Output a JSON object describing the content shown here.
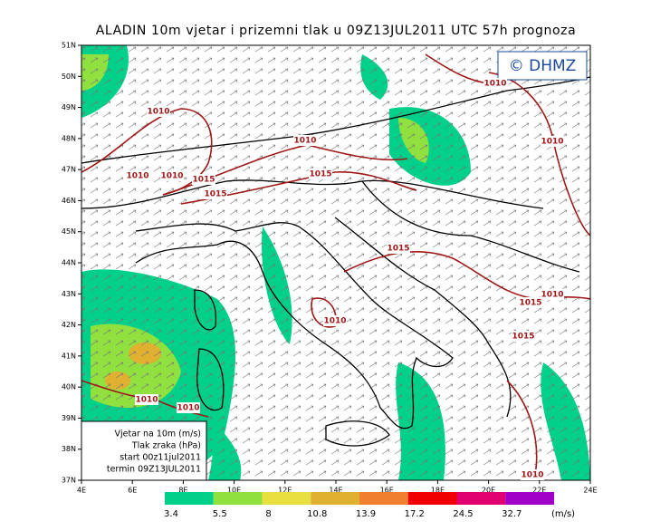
{
  "title": "ALADIN 10m vjetar i prizemni tlak u 09Z13JUL2011 UTC 57h prognoza",
  "copyright": "© DHMZ",
  "lat_labels": [
    "51N",
    "50N",
    "49N",
    "48N",
    "47N",
    "46N",
    "45N",
    "44N",
    "43N",
    "42N",
    "41N",
    "40N",
    "39N",
    "38N",
    "37N"
  ],
  "lon_labels": [
    "4E",
    "6E",
    "8E",
    "10E",
    "12E",
    "14E",
    "16E",
    "18E",
    "20E",
    "22E",
    "24E"
  ],
  "info_box": [
    "Vjetar na 10m (m/s)",
    "Tlak zraka (hPa)",
    "start 00z11jul2011",
    "termin 09Z13JUL2011"
  ],
  "isobar_labels": [
    "1010",
    "1010",
    "1010",
    "1010",
    "1015",
    "1015",
    "1015",
    "1010",
    "1010",
    "1015",
    "1010",
    "1015",
    "1010",
    "1015",
    "1010",
    "1010",
    "1010"
  ],
  "colorbar": {
    "colors": [
      "#00d08a",
      "#90e040",
      "#e8e040",
      "#e0b030",
      "#f08030",
      "#f00000",
      "#e00070",
      "#a000c8"
    ],
    "labels": [
      3.4,
      5.5,
      8,
      10.8,
      13.9,
      17.2,
      24.5,
      32.7
    ],
    "unit": "(m/s)"
  }
}
